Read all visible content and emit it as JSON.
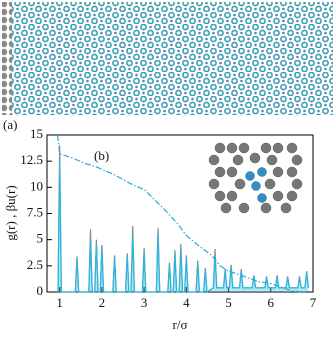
{
  "panel_a_label": "(a)",
  "chart_data": {
    "type": "line",
    "annotation": "(b)",
    "xlabel": "r/σ",
    "ylabel": "g(r) , βu(r)",
    "xlim": [
      0.7,
      7
    ],
    "xticks": [
      1,
      2,
      3,
      4,
      5,
      6,
      7
    ],
    "ylim": [
      0,
      15
    ],
    "yticks": [
      0,
      2.5,
      5,
      7.5,
      10,
      12.5,
      15
    ],
    "series": [
      {
        "color": "#8a8a8a",
        "style": "solid",
        "fill": false,
        "x": [
          0.96,
          1.0,
          1.04,
          1.37,
          1.41,
          1.45,
          1.69,
          1.73,
          1.77,
          1.83,
          1.87,
          1.91,
          1.96,
          2.0,
          2.04,
          2.26,
          2.3,
          2.34,
          2.56,
          2.6,
          2.64,
          2.69,
          2.73,
          2.77,
          2.96,
          3.0,
          3.04,
          3.29,
          3.33,
          3.37,
          3.56,
          3.6,
          3.64,
          3.69,
          3.73,
          3.77,
          3.83,
          3.87,
          3.91,
          3.96,
          4.0,
          4.04,
          4.23,
          4.27,
          4.31,
          4.41,
          4.45,
          4.49,
          4.64,
          4.68,
          4.72,
          4.88,
          4.92,
          4.96,
          5.02,
          5.06,
          5.1,
          5.26,
          5.3,
          5.34,
          5.56,
          5.6,
          5.64,
          5.86,
          5.9,
          5.94,
          6.11,
          6.15,
          6.19,
          6.36,
          6.4,
          6.44,
          6.64,
          6.68,
          6.72,
          6.81,
          6.85,
          6.89
        ],
        "values": [
          0,
          14,
          0,
          0,
          3.4,
          0,
          0,
          6.0,
          0,
          0,
          5.0,
          0,
          0,
          4.5,
          0,
          0,
          3.5,
          0,
          0,
          3.7,
          0,
          0,
          6.3,
          0,
          0,
          4.2,
          0,
          0,
          6.1,
          0,
          0,
          2.8,
          0,
          0,
          4.0,
          0,
          0,
          4.6,
          0,
          0,
          3.5,
          0,
          0,
          3.0,
          0,
          0,
          2.3,
          0,
          0.4,
          4.1,
          0.4,
          0.4,
          2.2,
          0.4,
          0.4,
          2.6,
          0.4,
          0.4,
          2.2,
          0.4,
          0.4,
          1.6,
          0.4,
          0.4,
          1.5,
          0.4,
          0.4,
          1.6,
          0.4,
          0.4,
          1.5,
          0.4,
          0.4,
          1.5,
          0.4,
          0.4,
          2.0,
          0.4
        ]
      },
      {
        "color": "#29b6e0",
        "style": "solid",
        "fill": true,
        "x": [
          0.96,
          1.0,
          1.04,
          1.37,
          1.41,
          1.45,
          1.69,
          1.73,
          1.77,
          1.83,
          1.87,
          1.91,
          1.96,
          2.0,
          2.04,
          2.26,
          2.3,
          2.34,
          2.56,
          2.6,
          2.64,
          2.69,
          2.73,
          2.77,
          2.96,
          3.0,
          3.04,
          3.29,
          3.33,
          3.37,
          3.56,
          3.6,
          3.64,
          3.69,
          3.73,
          3.77,
          3.83,
          3.87,
          3.91,
          3.96,
          4.0,
          4.04,
          4.23,
          4.27,
          4.31,
          4.41,
          4.45,
          4.49,
          4.64,
          4.68,
          4.72,
          4.88,
          4.92,
          4.96,
          5.02,
          5.06,
          5.1,
          5.26,
          5.3,
          5.34,
          5.56,
          5.6,
          5.64,
          5.86,
          5.9,
          5.94,
          6.11,
          6.15,
          6.19,
          6.36,
          6.4,
          6.44,
          6.64,
          6.68,
          6.72,
          6.81,
          6.85,
          6.89
        ],
        "values": [
          0,
          12.5,
          0,
          0,
          3.2,
          0,
          0,
          5.0,
          0,
          0,
          4.6,
          0,
          0,
          4.3,
          0,
          0,
          3.3,
          0,
          0,
          3.5,
          0,
          0,
          5.4,
          0,
          0,
          3.8,
          0,
          0,
          5.6,
          0,
          0,
          2.6,
          0,
          0,
          3.7,
          0,
          0,
          4.2,
          0,
          0,
          3.2,
          0,
          0,
          2.7,
          0,
          0,
          2.1,
          0,
          0.4,
          3.4,
          0.4,
          0.4,
          2.0,
          0.4,
          0.4,
          2.4,
          0.4,
          0.4,
          2.0,
          0.4,
          0.4,
          1.5,
          0.4,
          0.4,
          1.4,
          0.4,
          0.4,
          1.5,
          0.4,
          0.4,
          1.4,
          0.4,
          0.4,
          1.4,
          0.4,
          0.4,
          1.9,
          0.4
        ]
      },
      {
        "color": "#29a9d9",
        "style": "dashed",
        "fill": false,
        "x": [
          0.95,
          1.0,
          1.3,
          1.6,
          1.9,
          2.3,
          2.7,
          3.0,
          3.2,
          3.5,
          3.8,
          4.0,
          4.3,
          4.6,
          4.8,
          5.0,
          5.3,
          5.7,
          6.0,
          6.3,
          6.5,
          6.8
        ],
        "values": [
          15,
          13.2,
          12.8,
          12.3,
          11.9,
          11.2,
          10.3,
          9.8,
          9.0,
          7.8,
          6.5,
          5.4,
          4.4,
          3.5,
          2.5,
          2.0,
          1.6,
          1.0,
          0.8,
          0.4,
          0.1,
          0
        ]
      }
    ]
  }
}
